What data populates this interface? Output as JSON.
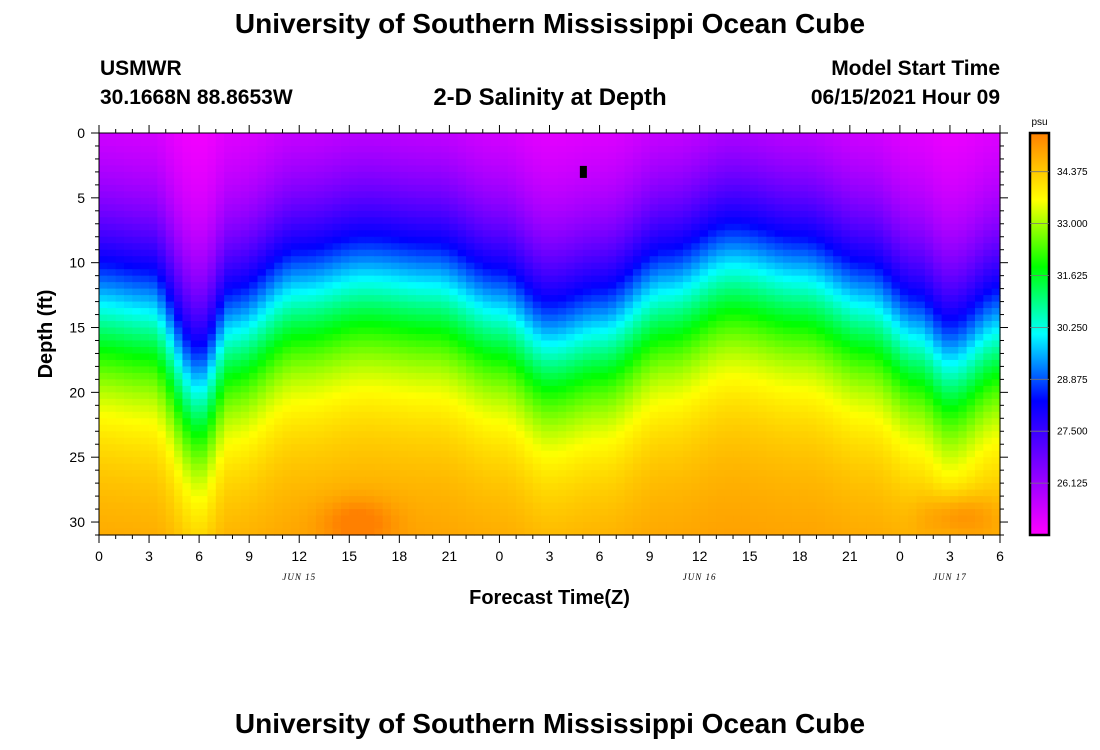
{
  "header": {
    "title": "University of Southern Mississippi Ocean Cube",
    "station": "USMWR",
    "coordinates": "30.1668N  88.8653W",
    "subtitle": "2-D Salinity at Depth",
    "model_start_label": "Model Start Time",
    "model_start_value": "06/15/2021 Hour 09"
  },
  "footer": {
    "title": "University of Southern Mississippi Ocean Cube"
  },
  "chart_data": {
    "type": "heatmap",
    "title": "2-D Salinity at Depth",
    "xlabel": "Forecast Time(Z)",
    "ylabel": "Depth (ft)",
    "x_tick_labels": [
      "0",
      "3",
      "6",
      "9",
      "12",
      "15",
      "18",
      "21",
      "0",
      "3",
      "6",
      "9",
      "12",
      "15",
      "18",
      "21",
      "0",
      "3",
      "6"
    ],
    "x_range_hours": [
      0,
      54
    ],
    "date_labels": [
      {
        "label": "JUN 15",
        "hour": 12
      },
      {
        "label": "JUN 16",
        "hour": 36
      },
      {
        "label": "JUN 17",
        "hour": 51
      }
    ],
    "y_tick_labels": [
      "0",
      "5",
      "10",
      "15",
      "20",
      "25",
      "30"
    ],
    "y_range_ft": [
      0,
      31
    ],
    "colorbar": {
      "unit": "psu",
      "range": [
        24.75,
        35.4
      ],
      "tick_labels": [
        "34.375",
        "33.000",
        "31.625",
        "30.250",
        "28.875",
        "27.500",
        "26.125"
      ],
      "colors": [
        "#ff00ff",
        "#8000ff",
        "#0000ff",
        "#00ffff",
        "#00ff00",
        "#ffff00",
        "#ff8000"
      ]
    },
    "field_model": {
      "description": "approximate salinity field: fresh (~25 psu) near surface, salty (~35 psu) near bottom; isohalines deepen near hour 6, hour 27 and hour 51",
      "surface_psu": 25.2,
      "bottom_psu": 34.6,
      "halocline_depth_keypoints": [
        [
          0,
          13
        ],
        [
          3,
          13.5
        ],
        [
          6,
          19.5
        ],
        [
          8,
          15
        ],
        [
          12,
          12
        ],
        [
          16,
          11
        ],
        [
          20,
          11.5
        ],
        [
          24,
          13.5
        ],
        [
          27,
          16
        ],
        [
          30,
          15
        ],
        [
          34,
          12
        ],
        [
          38,
          10
        ],
        [
          42,
          11
        ],
        [
          46,
          13
        ],
        [
          49,
          15.5
        ],
        [
          51,
          17.5
        ],
        [
          54,
          15
        ]
      ],
      "halocline_thickness_ft": 4.5,
      "bottom_hotspots": [
        {
          "hour": 15.5,
          "depth_ft": 30,
          "psu": 35.3
        },
        {
          "hour": 51.5,
          "depth_ft": 29.5,
          "psu": 35.4
        }
      ],
      "marker": {
        "hour": 29,
        "depth_ft": 3
      }
    }
  }
}
